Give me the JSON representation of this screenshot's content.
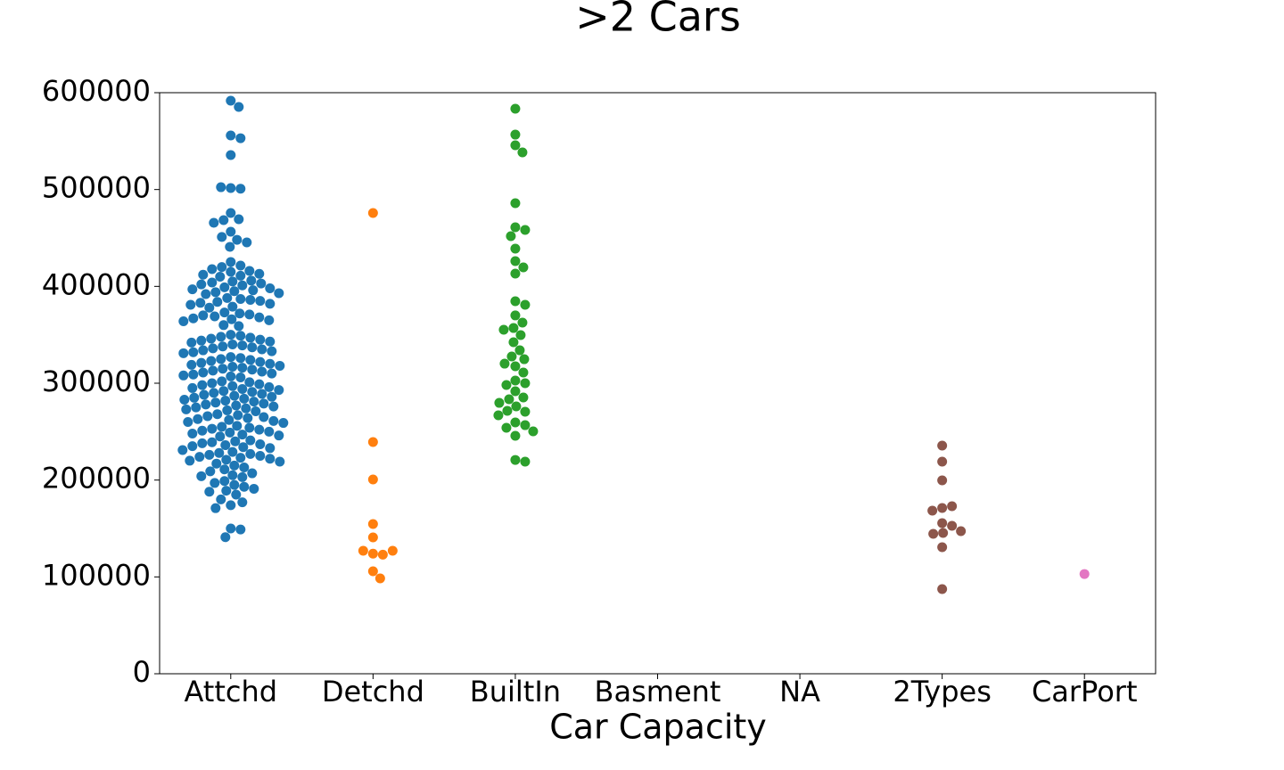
{
  "chart_data": {
    "type": "swarm",
    "title": ">2 Cars",
    "x_label": "Car Capacity",
    "categories": [
      "Attchd",
      "Detchd",
      "BuiltIn",
      "Basment",
      "NA",
      "2Types",
      "CarPort"
    ],
    "colors": [
      "#1f77b4",
      "#ff7f0e",
      "#2ca02c",
      "#d62728",
      "#9467bd",
      "#8c564b",
      "#e377c2"
    ],
    "values": [
      [
        591700,
        585300,
        555800,
        553000,
        535600,
        501500,
        500800,
        502400,
        475800,
        469300,
        468400,
        465600,
        456400,
        448100,
        451000,
        445400,
        440800,
        425200,
        421500,
        420000,
        417800,
        415000,
        416000,
        412000,
        411000,
        410000,
        413000,
        406000,
        405000,
        404000,
        403000,
        402000,
        401000,
        399000,
        398000,
        397000,
        396000,
        395000,
        394000,
        393000,
        392000,
        388000,
        387000,
        386000,
        385000,
        384000,
        383000,
        382000,
        381000,
        379000,
        378000,
        373000,
        372000,
        371000,
        370000,
        369000,
        368000,
        367000,
        366000,
        365000,
        364000,
        360000,
        359000,
        350000,
        349000,
        348000,
        347000,
        346000,
        345000,
        344000,
        343000,
        342000,
        340000,
        339000,
        338000,
        337000,
        336000,
        335000,
        334000,
        333000,
        332000,
        331000,
        327000,
        326000,
        325000,
        324000,
        323000,
        322000,
        321000,
        320000,
        319000,
        318000,
        317000,
        316000,
        315000,
        314000,
        313000,
        312000,
        311000,
        310000,
        309000,
        308000,
        307000,
        306000,
        302000,
        301000,
        300000,
        299000,
        298000,
        297000,
        296000,
        295000,
        294000,
        293000,
        292000,
        291000,
        290000,
        289000,
        288000,
        287000,
        286000,
        285000,
        284000,
        283000,
        282000,
        281000,
        280000,
        279000,
        278000,
        277000,
        276000,
        275000,
        274000,
        273000,
        272000,
        271000,
        268000,
        267000,
        266000,
        265000,
        264000,
        263000,
        262000,
        261000,
        260000,
        259000,
        256000,
        255000,
        254000,
        253000,
        252000,
        251000,
        250000,
        249000,
        248000,
        247000,
        246000,
        245000,
        241000,
        240000,
        239000,
        238000,
        237000,
        236000,
        235000,
        234000,
        233000,
        231000,
        229000,
        228000,
        227000,
        226000,
        225000,
        224000,
        223000,
        222000,
        221000,
        220000,
        219000,
        217000,
        215000,
        213000,
        211000,
        209000,
        207000,
        205000,
        204000,
        203000,
        199000,
        197000,
        195000,
        193000,
        191000,
        189000,
        188000,
        185000,
        180000,
        177000,
        174000,
        171000,
        150000,
        149000,
        141000
      ],
      [
        475800,
        239300,
        200600,
        154600,
        140800,
        124000,
        123000,
        127000,
        127000,
        105800,
        98500
      ],
      [
        583400,
        556700,
        545700,
        538300,
        485900,
        461000,
        458300,
        451800,
        439000,
        426100,
        419600,
        413200,
        384700,
        381000,
        370000,
        362600,
        357000,
        355200,
        349700,
        342300,
        334000,
        327600,
        324800,
        320200,
        317500,
        311000,
        302800,
        300000,
        298200,
        291700,
        285300,
        283400,
        279700,
        276100,
        271500,
        270600,
        266900,
        259500,
        256700,
        254000,
        250300,
        245700,
        220800,
        219000
      ],
      [],
      [],
      [
        235600,
        219000,
        199700,
        171200,
        173000,
        168400,
        155500,
        152800,
        145400,
        144500,
        147200,
        130700,
        87400
      ],
      [
        103000
      ]
    ],
    "ylim": [
      0,
      600000
    ],
    "yticks": [
      0,
      100000,
      200000,
      300000,
      400000,
      500000,
      600000
    ]
  }
}
